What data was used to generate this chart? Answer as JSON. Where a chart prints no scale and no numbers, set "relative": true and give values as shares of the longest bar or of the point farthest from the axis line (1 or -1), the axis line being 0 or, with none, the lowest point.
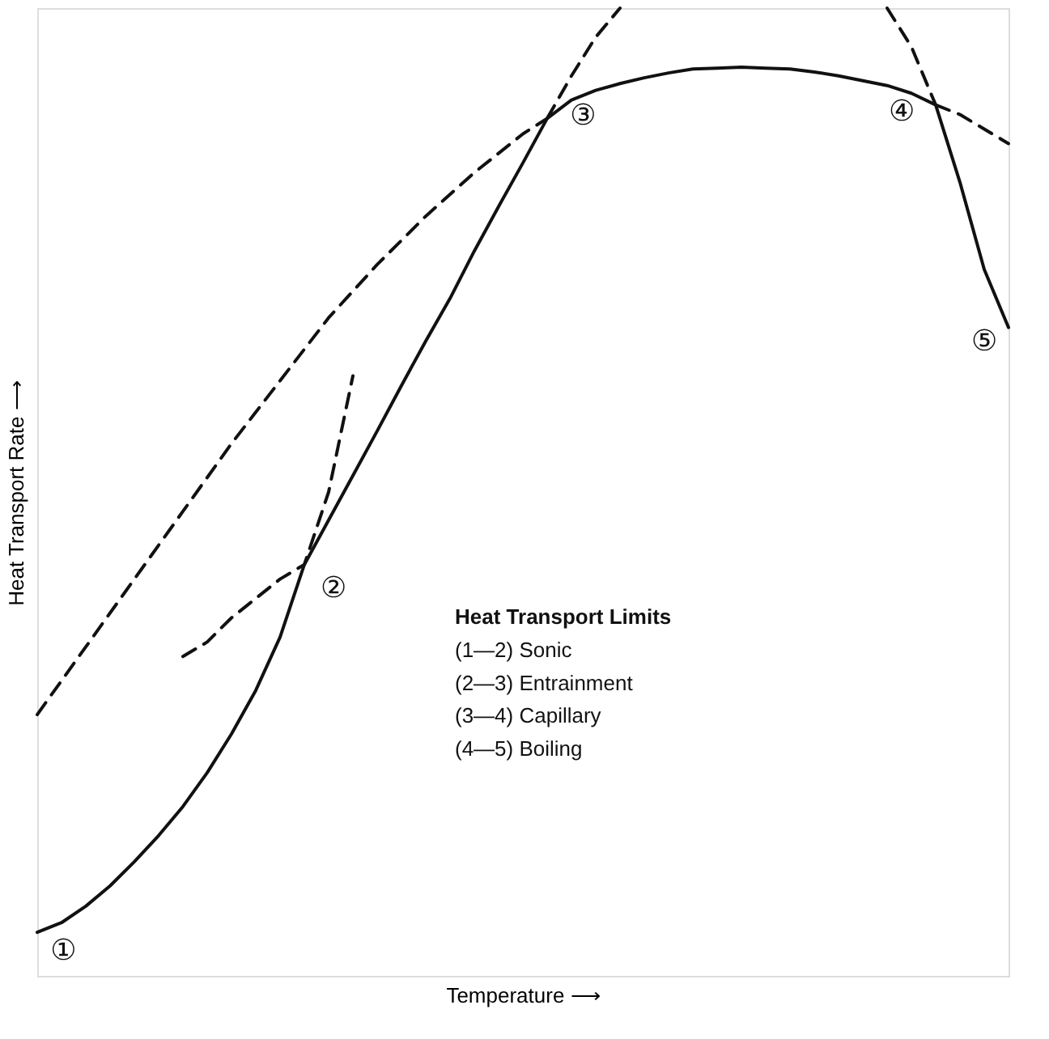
{
  "chart_data": {
    "type": "line",
    "relative": true,
    "xlabel": "Temperature ⟶",
    "ylabel": "Heat Transport Rate ⟶",
    "grid": false,
    "tick_labels": false,
    "marker": "none",
    "categories": [
      null,
      null,
      null,
      null,
      null,
      null,
      null,
      null,
      null,
      null,
      null,
      null,
      null,
      null,
      null,
      null,
      null,
      null,
      null,
      null,
      null,
      null,
      null,
      null,
      null,
      null,
      null,
      null,
      null,
      null,
      null,
      null,
      null,
      null,
      null,
      null,
      null,
      null,
      null,
      null,
      null
    ],
    "series": [
      {
        "color": "#111111",
        "line_style": "solid",
        "values": [
          0.045,
          0.055,
          0.072,
          0.093,
          0.118,
          0.145,
          0.175,
          0.21,
          0.25,
          0.295,
          0.35,
          0.425,
          0.471,
          0.517,
          0.563,
          0.61,
          0.656,
          0.7,
          0.749,
          0.795,
          0.84,
          0.886,
          0.905,
          0.915,
          0.922,
          0.928,
          0.933,
          0.937,
          0.938,
          0.939,
          0.938,
          0.937,
          0.934,
          0.93,
          0.925,
          0.92,
          0.912,
          0.9,
          0.82,
          0.73,
          0.67
        ]
      },
      {
        "color": "#111111",
        "line_style": "dashed",
        "values": [
          null,
          null,
          null,
          null,
          null,
          null,
          0.33,
          0.345,
          0.37,
          0.39,
          0.41,
          0.425,
          0.5,
          0.62,
          null,
          null,
          null,
          null,
          null,
          null,
          null,
          null,
          null,
          null,
          null,
          null,
          null,
          null,
          null,
          null,
          null,
          null,
          null,
          null,
          null,
          null,
          null,
          null,
          null,
          null,
          null
        ]
      },
      {
        "color": "#111111",
        "line_style": "dashed",
        "values": [
          null,
          null,
          null,
          null,
          null,
          null,
          null,
          null,
          null,
          null,
          null,
          null,
          null,
          null,
          null,
          null,
          null,
          null,
          null,
          null,
          null,
          0.886,
          0.93,
          0.97,
          1.0,
          null,
          null,
          null,
          null,
          null,
          null,
          null,
          null,
          null,
          null,
          null,
          null,
          null,
          null,
          null,
          null
        ]
      },
      {
        "color": "#111111",
        "line_style": "dashed",
        "values": [
          0.27,
          null,
          0.34,
          null,
          0.41,
          null,
          0.48,
          null,
          0.55,
          null,
          0.615,
          null,
          0.68,
          null,
          0.735,
          null,
          0.785,
          null,
          0.83,
          null,
          0.87,
          0.886,
          null,
          null,
          null,
          null,
          null,
          null,
          null,
          null,
          null,
          null,
          null,
          null,
          null,
          null,
          null,
          null,
          null,
          null,
          null
        ]
      },
      {
        "color": "#111111",
        "line_style": "dashed",
        "values": [
          null,
          null,
          null,
          null,
          null,
          null,
          null,
          null,
          null,
          null,
          null,
          null,
          null,
          null,
          null,
          null,
          null,
          null,
          null,
          null,
          null,
          null,
          null,
          null,
          null,
          null,
          null,
          null,
          null,
          null,
          null,
          null,
          null,
          null,
          null,
          null,
          null,
          0.9,
          0.89,
          0.875,
          0.86
        ]
      },
      {
        "color": "#111111",
        "line_style": "dashed",
        "values": [
          null,
          null,
          null,
          null,
          null,
          null,
          null,
          null,
          null,
          null,
          null,
          null,
          null,
          null,
          null,
          null,
          null,
          null,
          null,
          null,
          null,
          null,
          null,
          null,
          null,
          null,
          null,
          null,
          null,
          null,
          null,
          null,
          null,
          null,
          null,
          1.0,
          0.96,
          0.9,
          null,
          null,
          null
        ]
      }
    ],
    "annotations": [
      "①",
      "②",
      "③",
      "④",
      "⑤",
      "Heat Transport Limits",
      "(1—2)  Sonic",
      "(2—3)  Entrainment",
      "(3—4)  Capillary",
      "(4—5)  Boiling"
    ]
  }
}
